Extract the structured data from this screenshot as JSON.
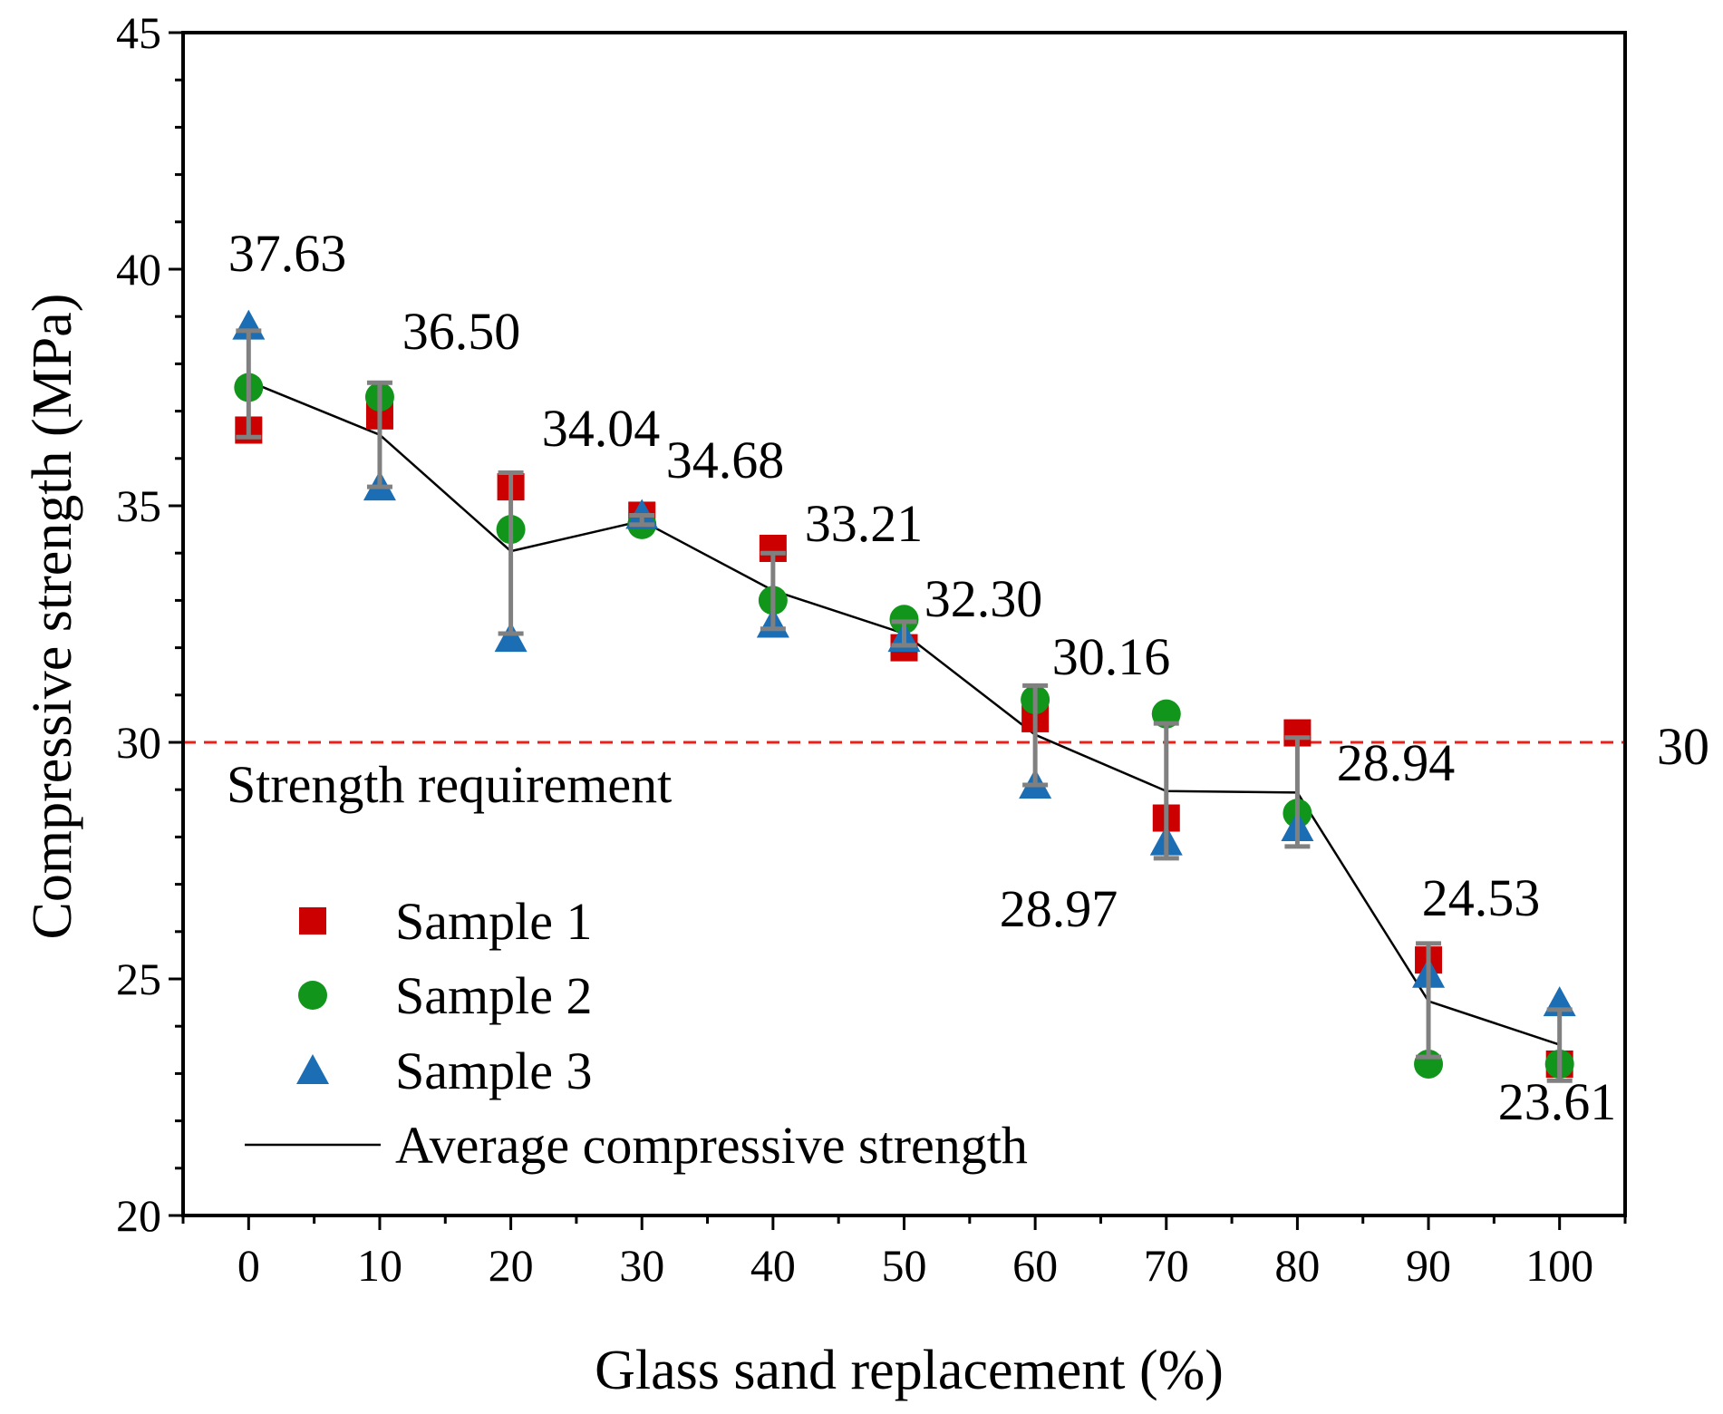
{
  "chart_data": {
    "type": "scatter",
    "title": "",
    "xlabel": "Glass sand replacement (%)",
    "ylabel": "Compressive strength (MPa)",
    "xlim": [
      -5,
      105
    ],
    "ylim": [
      20,
      45
    ],
    "x": [
      0,
      10,
      20,
      30,
      40,
      50,
      60,
      70,
      80,
      90,
      100
    ],
    "x_tick_labels": [
      "0",
      "10",
      "20",
      "30",
      "40",
      "50",
      "60",
      "70",
      "80",
      "90",
      "100"
    ],
    "y_ticks": [
      20,
      25,
      30,
      35,
      40,
      45
    ],
    "y_tick_labels": [
      "20",
      "25",
      "30",
      "35",
      "40",
      "45"
    ],
    "series": [
      {
        "name": "Sample 1",
        "marker": "square",
        "color": "#cc0000",
        "values": [
          36.6,
          36.9,
          35.4,
          34.8,
          34.1,
          32.0,
          30.5,
          28.4,
          30.2,
          25.4,
          23.2
        ]
      },
      {
        "name": "Sample 2",
        "marker": "circle",
        "color": "#11961b",
        "values": [
          37.5,
          37.3,
          34.5,
          34.6,
          33.0,
          32.6,
          30.9,
          30.6,
          28.5,
          23.2,
          23.2
        ]
      },
      {
        "name": "Sample 3",
        "marker": "triangle",
        "color": "#1b6eb4",
        "values": [
          38.8,
          35.4,
          32.2,
          34.8,
          32.5,
          32.2,
          29.1,
          27.9,
          28.2,
          25.1,
          24.5
        ]
      },
      {
        "name": "Average compressive strength",
        "type": "line",
        "color": "#000000",
        "values": [
          37.63,
          36.5,
          34.04,
          34.68,
          33.21,
          32.3,
          30.16,
          28.97,
          28.94,
          24.53,
          23.61
        ]
      }
    ],
    "error_bars": {
      "color": "#808080",
      "low": [
        36.45,
        35.4,
        32.3,
        34.6,
        32.4,
        32.05,
        29.1,
        27.55,
        27.8,
        23.35,
        22.85
      ],
      "high": [
        38.7,
        37.6,
        35.7,
        34.8,
        34.0,
        32.55,
        31.2,
        30.4,
        30.1,
        25.75,
        24.35
      ]
    },
    "data_labels": [
      "37.63",
      "36.50",
      "34.04",
      "34.68",
      "33.21",
      "32.30",
      "30.16",
      "28.97",
      "28.94",
      "24.53",
      "23.61"
    ],
    "reference_line": {
      "y": 30,
      "color": "#e8221b",
      "label": "Strength requirement",
      "value_label": "30"
    },
    "legend": {
      "position": "bottom-left",
      "entries": [
        "Sample 1",
        "Sample 2",
        "Sample 3",
        "Average compressive strength"
      ]
    }
  }
}
